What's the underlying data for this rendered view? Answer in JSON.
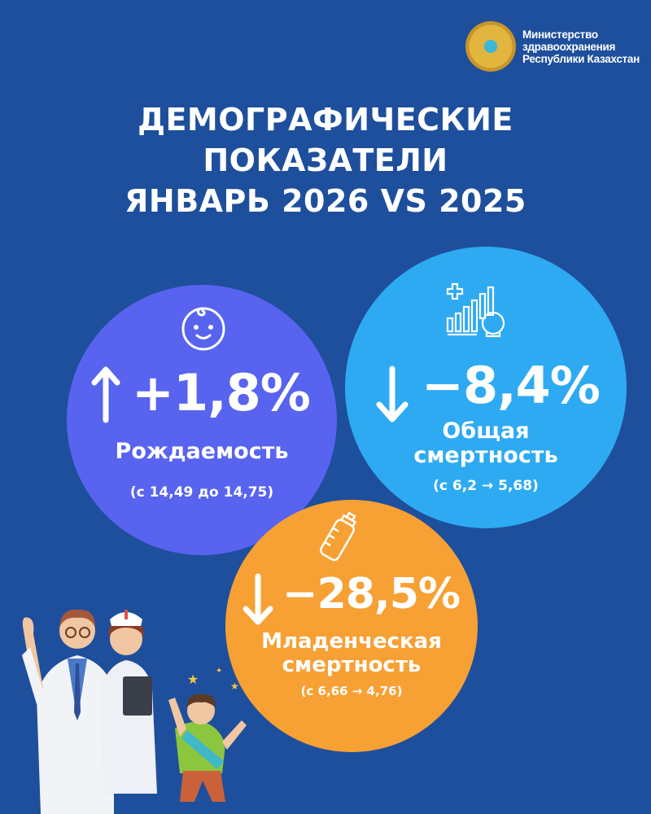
{
  "header": {
    "logo_text": [
      "Министерство",
      "здравоохранения",
      "Республики Казахстан"
    ],
    "title_lines": [
      "ДЕМОГРАФИЧЕСКИЕ",
      "ПОКАЗАТЕЛИ",
      "ЯНВАРЬ 2026 VS 2025"
    ]
  },
  "colors": {
    "background": "#1e4f9c",
    "birth": "#5863ef",
    "mortality": "#2eaaf2",
    "infant": "#f7a034"
  },
  "stats": [
    {
      "icon": "baby-face-icon",
      "direction": "up",
      "value": "+1,8%",
      "label": "Рождаемость",
      "detail": "(с 14,49 до 14,75)"
    },
    {
      "icon": "mortality-chart-skull-icon",
      "direction": "down",
      "value": "−8,4%",
      "label_lines": [
        "Общая",
        "смертность"
      ],
      "detail": "(с 6,2 → 5,68)"
    },
    {
      "icon": "baby-bottle-icon",
      "direction": "down",
      "value": "−28,5%",
      "label_lines": [
        "Младенческая",
        "смертность"
      ],
      "detail": "(с 6,66 → 4,76)"
    }
  ]
}
